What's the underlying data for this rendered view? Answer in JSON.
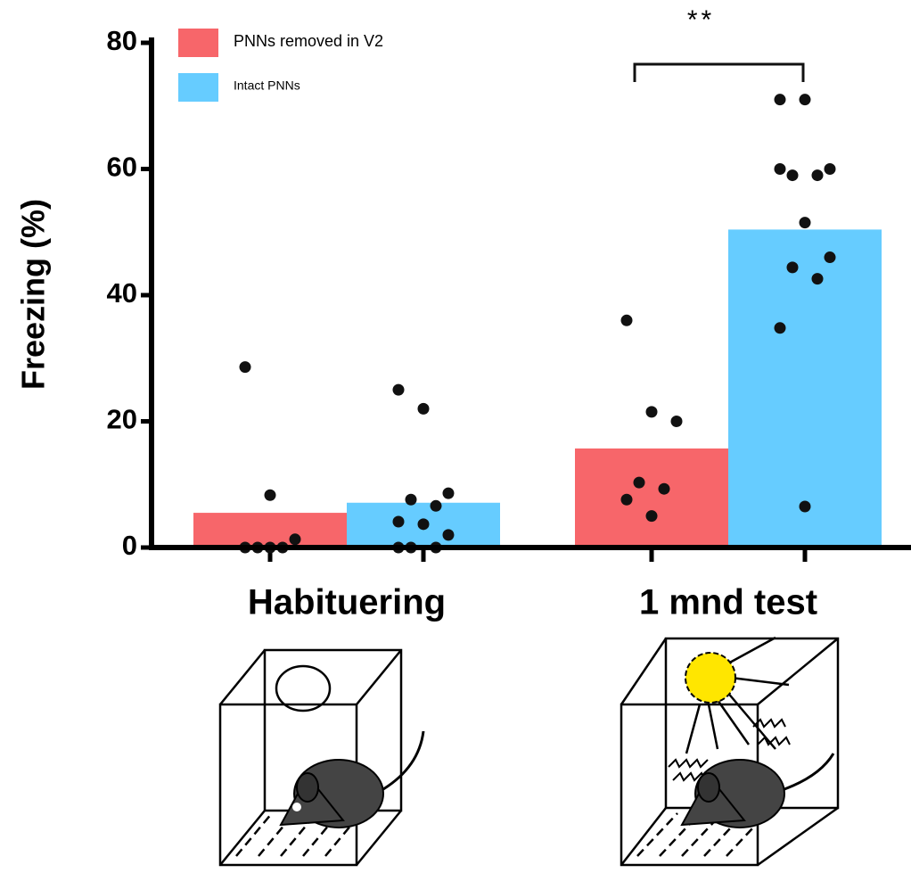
{
  "chart_data": {
    "type": "bar",
    "y_label": "Freezing (%)",
    "categories": [
      "Habituering",
      "1 mnd test"
    ],
    "series": [
      {
        "name": "PNNs removed in V2",
        "color": "#f7666a",
        "values": [
          5.5,
          15.7
        ],
        "points": [
          [
            28.6,
            8.3,
            1.3,
            0,
            0,
            0,
            0
          ],
          [
            36,
            21.5,
            20,
            10.3,
            9.3,
            7.6,
            5
          ]
        ]
      },
      {
        "name": "Intact PNNs",
        "color": "#66ccff",
        "values": [
          7.1,
          50.4
        ],
        "points": [
          [
            25,
            22,
            8.6,
            7.6,
            6.6,
            4.1,
            3.7,
            2,
            0,
            0,
            0
          ],
          [
            71,
            71,
            60,
            59,
            59,
            60,
            51.5,
            46,
            44.4,
            42.6,
            34.8,
            6.5
          ]
        ]
      }
    ],
    "ylim": [
      0,
      80
    ],
    "yticks": [
      0,
      20,
      40,
      60,
      80
    ],
    "significance": "**"
  }
}
